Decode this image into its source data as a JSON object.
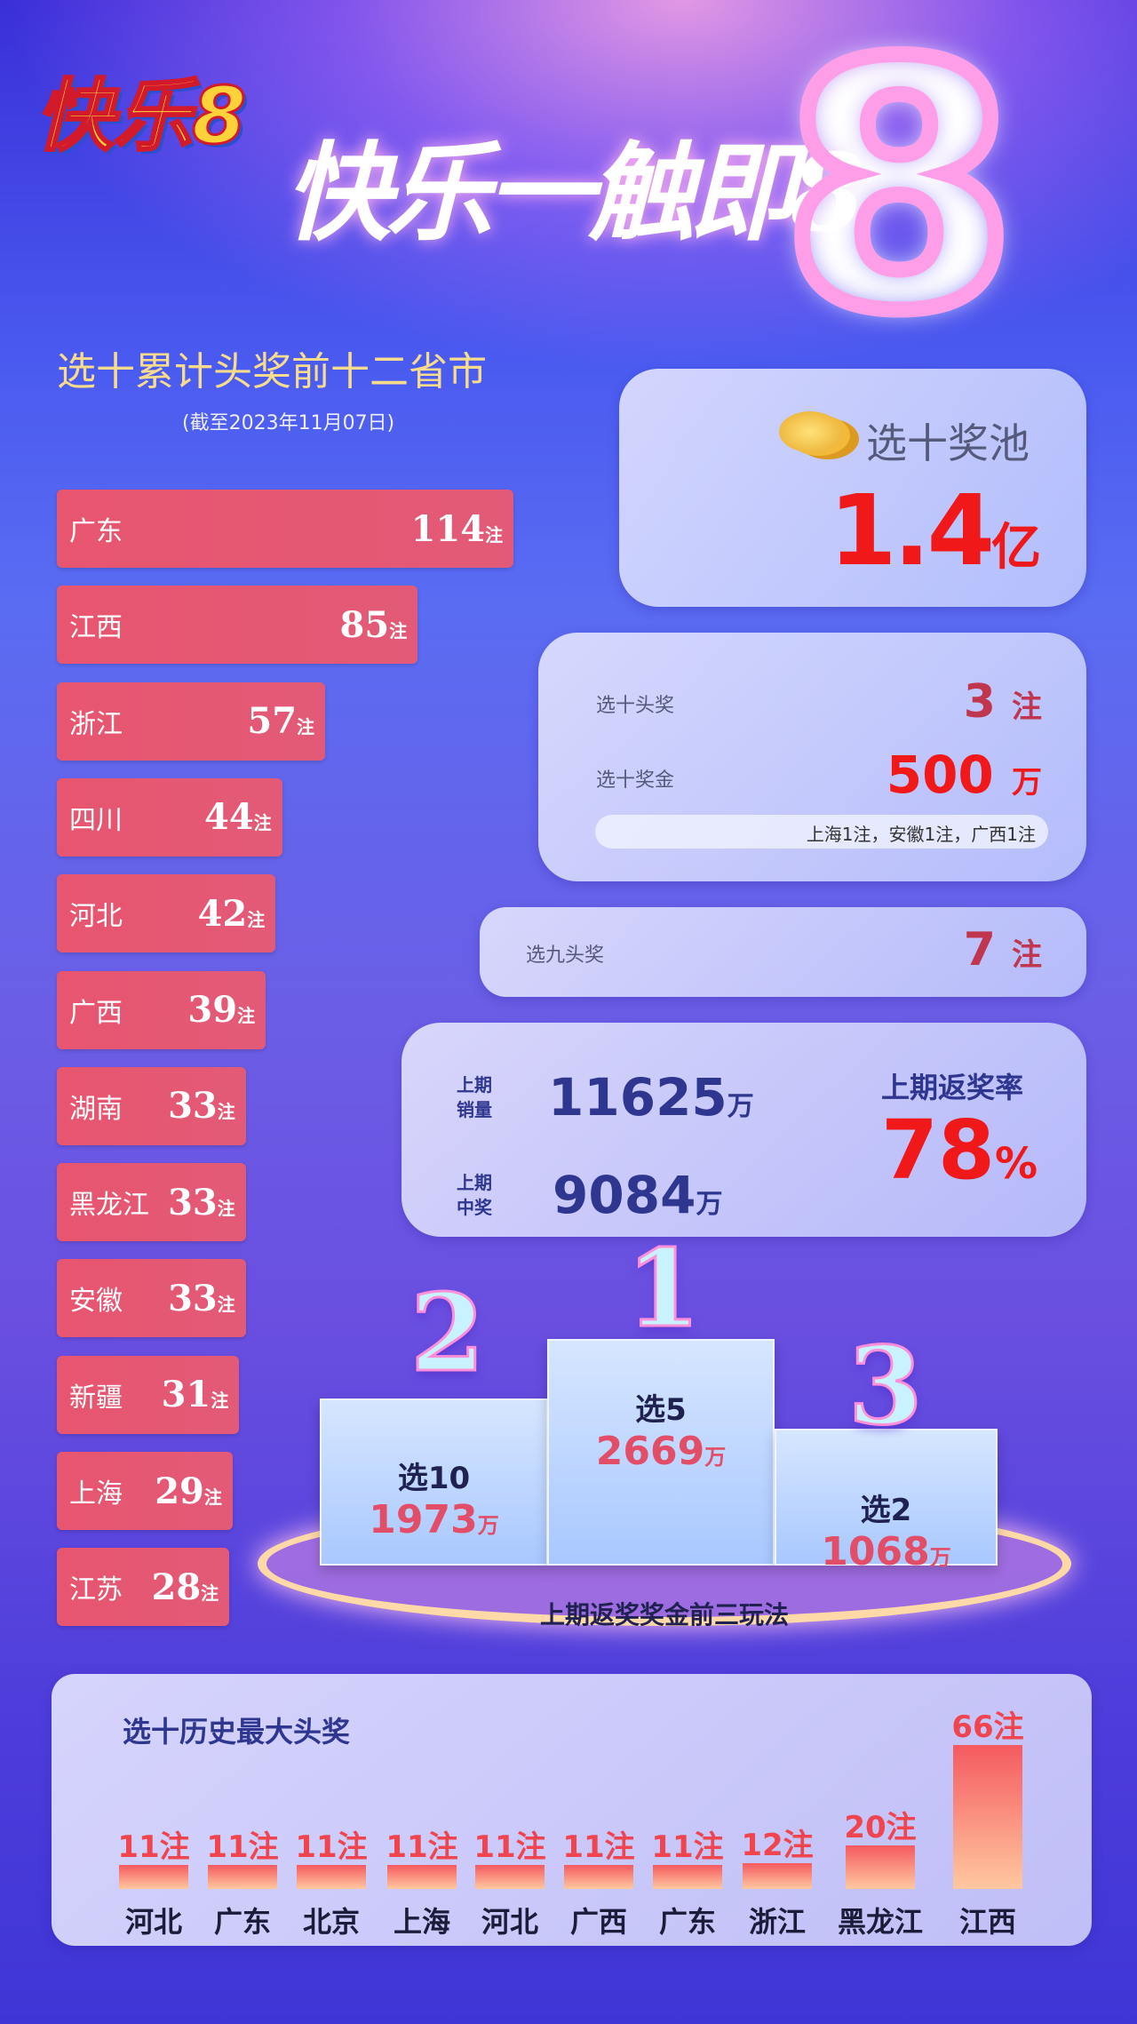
{
  "header": {
    "logo_text": "快乐8",
    "slogan": "快乐一触即8"
  },
  "left_title": "选十累计头奖前十二省市",
  "left_subtitle": "(截至2023年11月07日)",
  "unit_zhu": "注",
  "unit_wan": "万",
  "chart_data": [
    {
      "type": "bar",
      "orientation": "horizontal",
      "title": "选十累计头奖前十二省市",
      "subtitle": "(截至2023年11月07日)",
      "categories": [
        "广东",
        "江西",
        "浙江",
        "四川",
        "河北",
        "广西",
        "湖南",
        "黑龙江",
        "安徽",
        "新疆",
        "上海",
        "江苏"
      ],
      "values": [
        114,
        85,
        57,
        44,
        42,
        39,
        33,
        33,
        33,
        31,
        29,
        28
      ],
      "unit": "注",
      "color": "#e6566f"
    },
    {
      "type": "bar",
      "title": "选十历史最大头奖",
      "categories": [
        "河北",
        "广东",
        "北京",
        "上海",
        "河北",
        "广西",
        "广东",
        "浙江",
        "黑龙江",
        "江西"
      ],
      "values": [
        11,
        11,
        11,
        11,
        11,
        11,
        11,
        12,
        20,
        66
      ],
      "unit": "注",
      "color": "#f55a60"
    }
  ],
  "pool": {
    "label": "选十奖池",
    "value": "1.4",
    "unit": "亿",
    "icon": "coin-stack-icon"
  },
  "x10": {
    "first_label": "选十头奖",
    "first_value": "3",
    "first_unit": "注",
    "prize_label": "选十奖金",
    "prize_value": "500",
    "prize_unit": "万",
    "detail": "上海1注，安徽1注，广西1注"
  },
  "x9": {
    "label": "选九头奖",
    "value": "7",
    "unit": "注"
  },
  "sales": {
    "sales_label": "上期\n销量",
    "sales_value": "11625",
    "sales_unit": "万",
    "win_label": "上期\n中奖",
    "win_value": "9084",
    "win_unit": "万",
    "rate_label": "上期返奖率",
    "rate_value": "78",
    "rate_unit": "%"
  },
  "podium": {
    "caption": "上期返奖奖金前三玩法",
    "items": [
      {
        "rank": "2",
        "game": "选10",
        "value": "1973",
        "unit": "万"
      },
      {
        "rank": "1",
        "game": "选5",
        "value": "2669",
        "unit": "万"
      },
      {
        "rank": "3",
        "game": "选2",
        "value": "1068",
        "unit": "万"
      }
    ]
  },
  "history_title": "选十历史最大头奖",
  "colors": {
    "bar": "#e6566f",
    "red": "#f01818",
    "maroon": "#c0364f",
    "navy": "#2e3690",
    "title_gold": "#f8dc8c"
  }
}
